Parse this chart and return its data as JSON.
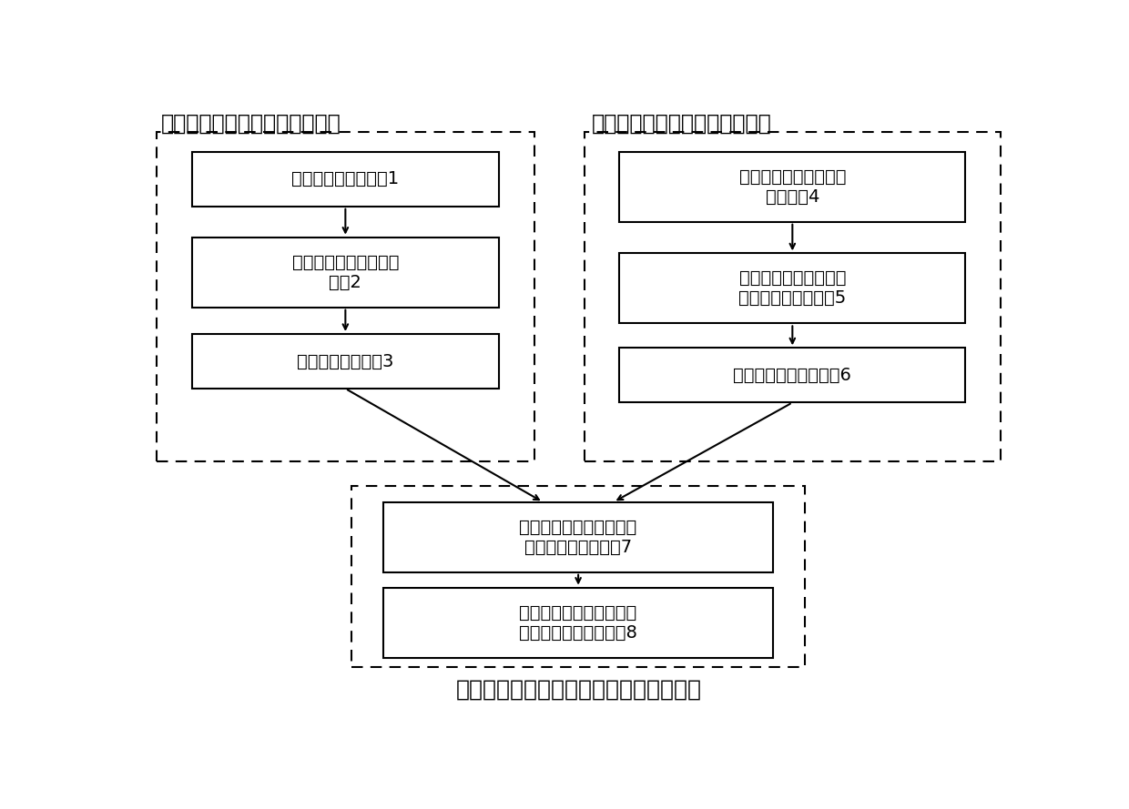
{
  "title": "步骤三：非均匀流场中气体参数计算步骤",
  "step1_label": "步骤一：波长调制光谱仿真步骤",
  "step2_label": "步骤二：波长调制光谱拟合步骤",
  "box1_text": "选择合适的吸收谱线1",
  "box2_text": "采集波长调制光谱测量\n信号2",
  "box3_text": "解调调制光谱信号3",
  "box4_text": "计算谱线积分吸光度的\n变化范围4",
  "box5_text": "计算谱线高斯线宽和洛\n伦兹线宽的变化范围5",
  "box6_text": "最小二乘拟合谱波信号6",
  "box7_text": "拟合温度范围内谱线的线\n强度随的温度的变化7",
  "box8_text": "计算非均匀流场内的气体\n温度和吸收分子的分压8",
  "bg_color": "#ffffff",
  "box_edge_color": "#000000",
  "arrow_color": "#000000",
  "text_color": "#000000",
  "font_size": 14,
  "label_font_size": 17
}
